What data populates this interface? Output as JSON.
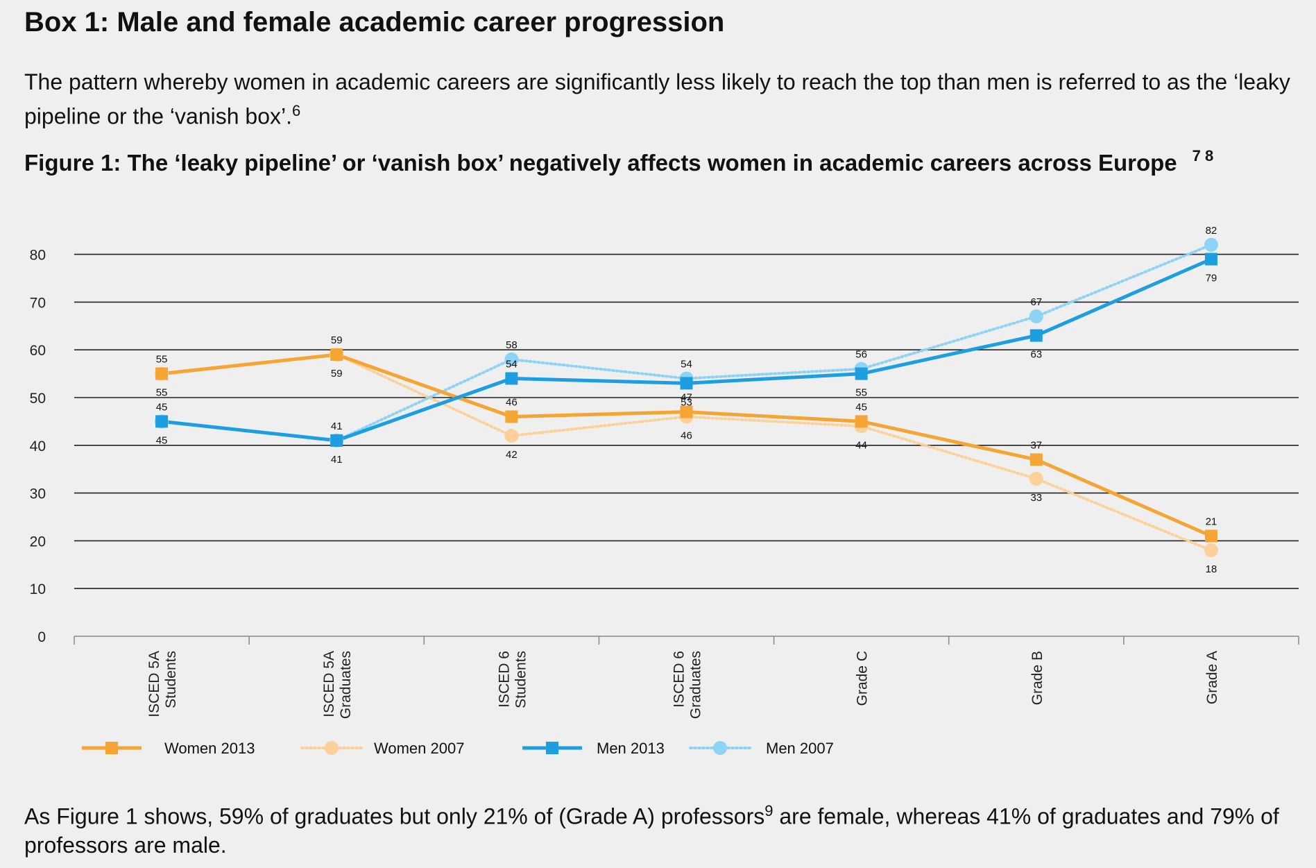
{
  "box_title": "Box 1: Male and female academic career progression",
  "intro": {
    "text": "The pattern whereby women in academic careers are significantly less likely to reach the top than men is referred to as the ‘leaky pipeline or the ‘vanish box’.",
    "footnote": "6"
  },
  "figure": {
    "title": "Figure 1: The ‘leaky pipeline’ or ‘vanish box’ negatively affects women in academic careers across Europe",
    "footnotes": "7 8"
  },
  "outro": {
    "text_before": "As Figure 1 shows, 59% of graduates but only 21% of (Grade A) professors",
    "footnote": "9",
    "text_after": " are female, whereas 41% of graduates and 79% of professors are male."
  },
  "chart_data": {
    "type": "line",
    "categories": [
      [
        "ISCED 5A",
        "Students"
      ],
      [
        "ISCED 5A",
        "Graduates"
      ],
      [
        "ISCED 6",
        "Students"
      ],
      [
        "ISCED 6",
        "Graduates"
      ],
      [
        "Grade C"
      ],
      [
        "Grade B"
      ],
      [
        "Grade A"
      ]
    ],
    "y_ticks": [
      0,
      10,
      20,
      30,
      40,
      50,
      60,
      70,
      80
    ],
    "ylim": [
      0,
      85
    ],
    "grid": true,
    "legend_position": "bottom-left",
    "series": [
      {
        "name": "Women 2013",
        "values": [
          55,
          59,
          46,
          47,
          45,
          37,
          21
        ],
        "color": "#f4a533",
        "marker": "square",
        "dash": "solid",
        "label_side": [
          "below",
          "above",
          "above",
          "above",
          "above",
          "above",
          "above"
        ]
      },
      {
        "name": "Women 2007",
        "values": [
          55,
          59,
          42,
          46,
          44,
          33,
          18
        ],
        "color": "#fcd199",
        "marker": "circle",
        "dash": "dotted",
        "label_side": [
          "above",
          "below",
          "below",
          "below",
          "below",
          "below",
          "below"
        ]
      },
      {
        "name": "Men 2013",
        "values": [
          45,
          41,
          54,
          53,
          55,
          63,
          79
        ],
        "color": "#1c9ee0",
        "marker": "square",
        "dash": "solid",
        "label_side": [
          "below",
          "below",
          "above",
          "below",
          "below",
          "below",
          "below"
        ]
      },
      {
        "name": "Men 2007",
        "values": [
          45,
          41,
          58,
          54,
          56,
          67,
          82
        ],
        "color": "#8dd3f6",
        "marker": "circle",
        "dash": "dotted",
        "label_side": [
          "above",
          "above",
          "above",
          "above",
          "above",
          "above",
          "above"
        ]
      }
    ]
  }
}
